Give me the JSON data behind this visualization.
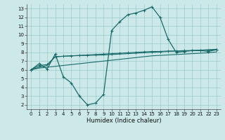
{
  "title": "",
  "xlabel": "Humidex (Indice chaleur)",
  "ylabel": "",
  "xlim": [
    -0.5,
    23.5
  ],
  "ylim": [
    1.5,
    13.5
  ],
  "xticks": [
    0,
    1,
    2,
    3,
    4,
    5,
    6,
    7,
    8,
    9,
    10,
    11,
    12,
    13,
    14,
    15,
    16,
    17,
    18,
    19,
    20,
    21,
    22,
    23
  ],
  "yticks": [
    2,
    3,
    4,
    5,
    6,
    7,
    8,
    9,
    10,
    11,
    12,
    13
  ],
  "bg_color": "#cce8e8",
  "grid_color": "#99cccc",
  "line_color": "#1a6b6b",
  "line_peak_x": [
    0,
    1,
    2,
    3,
    4,
    5,
    6,
    7,
    8,
    9,
    10,
    11,
    12,
    13,
    14,
    15,
    16,
    17,
    18,
    19,
    20,
    21,
    22,
    23
  ],
  "line_peak_y": [
    6.0,
    6.7,
    6.1,
    7.8,
    5.2,
    4.5,
    3.0,
    2.0,
    2.2,
    3.2,
    10.5,
    11.5,
    12.3,
    12.5,
    12.8,
    13.2,
    12.0,
    9.5,
    8.0,
    8.1,
    8.2,
    8.2,
    8.1,
    8.3
  ],
  "line_flat1_x": [
    0,
    1,
    2,
    3,
    4,
    5,
    6,
    7,
    8,
    9,
    10,
    11,
    12,
    13,
    14,
    15,
    16,
    17,
    18,
    19,
    20,
    21,
    22,
    23
  ],
  "line_flat1_y": [
    6.0,
    6.5,
    6.6,
    7.5,
    7.55,
    7.6,
    7.65,
    7.7,
    7.75,
    7.8,
    7.85,
    7.9,
    7.95,
    8.0,
    8.05,
    8.1,
    8.1,
    8.15,
    8.15,
    8.2,
    8.2,
    8.25,
    8.25,
    8.3
  ],
  "line_flat2_x": [
    0,
    1,
    2,
    3,
    4,
    5,
    6,
    7,
    8,
    9,
    10,
    11,
    12,
    13,
    14,
    15,
    16,
    17,
    18,
    19,
    20,
    21,
    22,
    23
  ],
  "line_flat2_y": [
    6.0,
    6.2,
    6.3,
    6.4,
    6.5,
    6.6,
    6.7,
    6.8,
    6.9,
    7.0,
    7.1,
    7.2,
    7.3,
    7.4,
    7.5,
    7.6,
    7.65,
    7.7,
    7.75,
    7.8,
    7.85,
    7.9,
    7.95,
    8.05
  ],
  "line_flat3_x": [
    0,
    1,
    2,
    3,
    5,
    7,
    9,
    10,
    11,
    12,
    13,
    14,
    15,
    16,
    17,
    18,
    19,
    20,
    21,
    22,
    23
  ],
  "line_flat3_y": [
    6.0,
    6.3,
    6.5,
    7.5,
    7.6,
    7.65,
    7.7,
    7.75,
    7.8,
    7.85,
    7.9,
    7.95,
    8.0,
    8.05,
    8.1,
    8.15,
    8.15,
    8.2,
    8.25,
    8.3,
    8.35
  ]
}
